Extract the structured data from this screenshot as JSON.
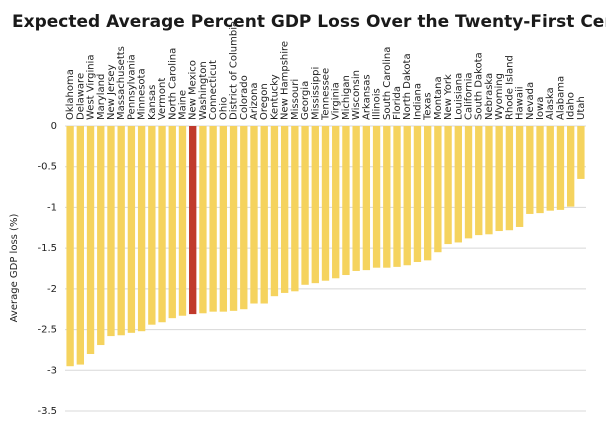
{
  "chart_data": {
    "type": "bar",
    "title": "Expected Average Percent GDP Loss Over the Twenty-First Century",
    "y_label": "Average GDP loss (%)",
    "categories": [
      "Oklahoma",
      "Delaware",
      "West Virginia",
      "Maryland",
      "New Jersey",
      "Massachusetts",
      "Pennsylvania",
      "Minnesota",
      "Kansas",
      "Vermont",
      "North Carolina",
      "Maine",
      "New Mexico",
      "Washington",
      "Connecticut",
      "Ohio",
      "District of Columbia",
      "Colorado",
      "Arizona",
      "Oregon",
      "Kentucky",
      "New Hampshire",
      "Missouri",
      "Georgia",
      "Mississippi",
      "Tennessee",
      "Virginia",
      "Michigan",
      "Wisconsin",
      "Arkansas",
      "Illinois",
      "South Carolina",
      "Florida",
      "North Dakota",
      "Indiana",
      "Texas",
      "Montana",
      "New York",
      "Louisiana",
      "California",
      "South Dakota",
      "Nebraska",
      "Wyoming",
      "Rhode Island",
      "Hawaii",
      "Nevada",
      "Iowa",
      "Alaska",
      "Alabama",
      "Idaho",
      "Utah"
    ],
    "values": [
      -2.95,
      -2.93,
      -2.8,
      -2.69,
      -2.58,
      -2.57,
      -2.54,
      -2.52,
      -2.44,
      -2.41,
      -2.36,
      -2.33,
      -2.31,
      -2.3,
      -2.28,
      -2.28,
      -2.27,
      -2.25,
      -2.18,
      -2.18,
      -2.09,
      -2.05,
      -2.03,
      -1.95,
      -1.93,
      -1.9,
      -1.87,
      -1.83,
      -1.78,
      -1.77,
      -1.74,
      -1.74,
      -1.73,
      -1.71,
      -1.67,
      -1.65,
      -1.55,
      -1.45,
      -1.43,
      -1.38,
      -1.34,
      -1.33,
      -1.29,
      -1.28,
      -1.24,
      -1.08,
      -1.07,
      -1.04,
      -1.03,
      -0.99,
      -0.65
    ],
    "colors": [
      "#f5d35e",
      "#f5d35e",
      "#f5d35e",
      "#f5d35e",
      "#f5d35e",
      "#f5d35e",
      "#f5d35e",
      "#f5d35e",
      "#f5d35e",
      "#f5d35e",
      "#f5d35e",
      "#f5d35e",
      "#c0392b",
      "#f5d35e",
      "#f5d35e",
      "#f5d35e",
      "#f5d35e",
      "#f5d35e",
      "#f5d35e",
      "#f5d35e",
      "#f5d35e",
      "#f5d35e",
      "#f5d35e",
      "#f5d35e",
      "#f5d35e",
      "#f5d35e",
      "#f5d35e",
      "#f5d35e",
      "#f5d35e",
      "#f5d35e",
      "#f5d35e",
      "#f5d35e",
      "#f5d35e",
      "#f5d35e",
      "#f5d35e",
      "#f5d35e",
      "#f5d35e",
      "#f5d35e",
      "#f5d35e",
      "#f5d35e",
      "#f5d35e",
      "#f5d35e",
      "#f5d35e",
      "#f5d35e",
      "#f5d35e",
      "#f5d35e",
      "#f5d35e",
      "#f5d35e",
      "#f5d35e",
      "#f5d35e",
      "#f5d35e"
    ],
    "ylim": [
      -3.5,
      0
    ],
    "yticks": [
      0,
      -0.5,
      -1,
      -1.5,
      -2,
      -2.5,
      -3,
      -3.5
    ],
    "grid": true
  }
}
